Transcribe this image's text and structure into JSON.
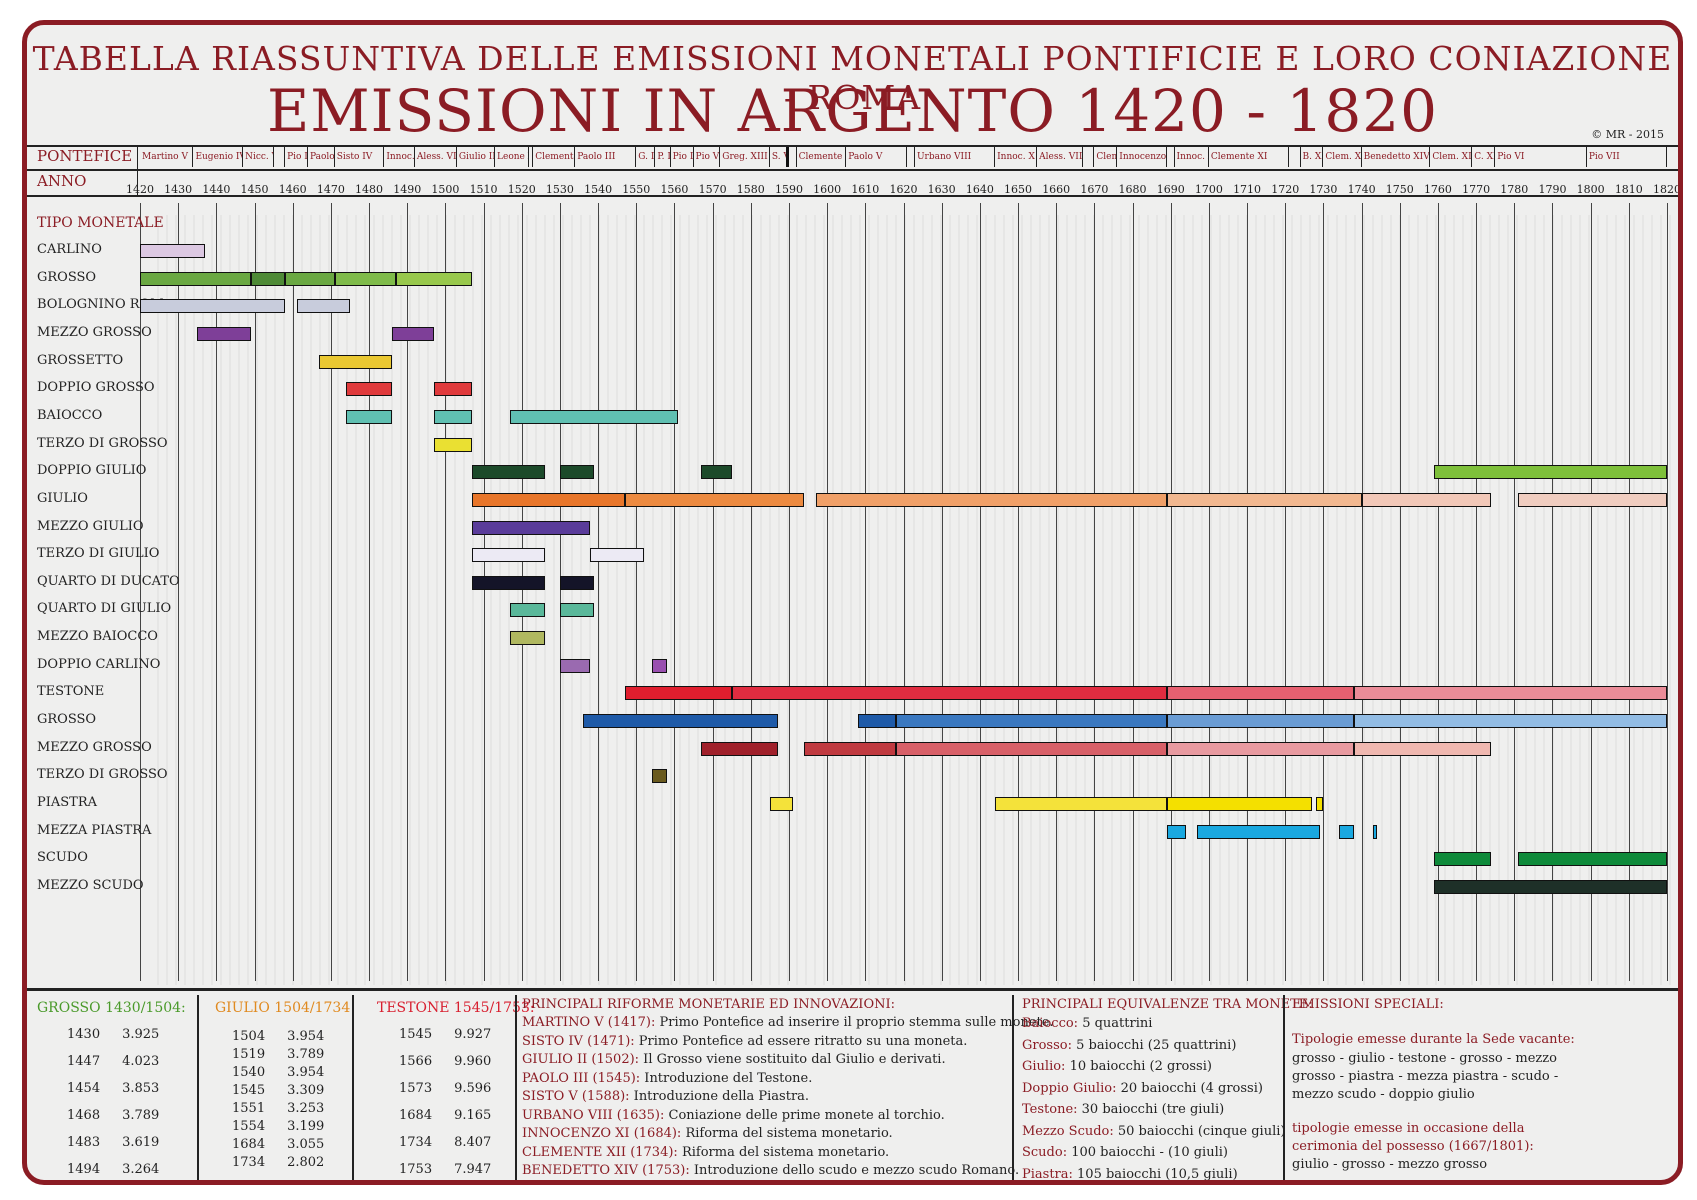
{
  "title_line1": "TABELLA RIASSUNTIVA DELLE EMISSIONI MONETALI PONTIFICIE E LORO CONIAZIONE - ROMA",
  "title_line2": "EMISSIONI IN ARGENTO 1420 - 1820",
  "copyright": "© MR - 2015",
  "header_labels": {
    "pontefice": "PONTEFICE",
    "anno": "ANNO",
    "tipo": "TIPO MONETALE"
  },
  "colors": {
    "frame": "#8b1c24",
    "label_red": "#8b1c24"
  },
  "popes": [
    {
      "name": "Martino V",
      "start": 1420,
      "end": 1434
    },
    {
      "name": "Eugenio IV",
      "start": 1434,
      "end": 1447
    },
    {
      "name": "Nicc. V",
      "start": 1447,
      "end": 1455
    },
    {
      "name": "",
      "start": 1455,
      "end": 1458
    },
    {
      "name": "Pio II",
      "start": 1458,
      "end": 1464
    },
    {
      "name": "Paolo II",
      "start": 1464,
      "end": 1471
    },
    {
      "name": "Sisto IV",
      "start": 1471,
      "end": 1484
    },
    {
      "name": "Innoc. VIII",
      "start": 1484,
      "end": 1492
    },
    {
      "name": "Aless. VI",
      "start": 1492,
      "end": 1503
    },
    {
      "name": "Giulio II",
      "start": 1503,
      "end": 1513
    },
    {
      "name": "Leone X",
      "start": 1513,
      "end": 1522
    },
    {
      "name": "",
      "start": 1522,
      "end": 1523
    },
    {
      "name": "Clemente VII",
      "start": 1523,
      "end": 1534
    },
    {
      "name": "Paolo III",
      "start": 1534,
      "end": 1550
    },
    {
      "name": "G. III",
      "start": 1550,
      "end": 1555
    },
    {
      "name": "P. IV",
      "start": 1555,
      "end": 1559
    },
    {
      "name": "Pio IV",
      "start": 1559,
      "end": 1565
    },
    {
      "name": "Pio V",
      "start": 1565,
      "end": 1572
    },
    {
      "name": "Greg. XIII",
      "start": 1572,
      "end": 1585
    },
    {
      "name": "S. V",
      "start": 1585,
      "end": 1590
    },
    {
      "name": "",
      "start": 1590,
      "end": 1592
    },
    {
      "name": "Clemente VIII",
      "start": 1592,
      "end": 1605
    },
    {
      "name": "Paolo V",
      "start": 1605,
      "end": 1621
    },
    {
      "name": "",
      "start": 1621,
      "end": 1623
    },
    {
      "name": "Urbano VIII",
      "start": 1623,
      "end": 1644
    },
    {
      "name": "Innoc. X",
      "start": 1644,
      "end": 1655
    },
    {
      "name": "Aless. VII",
      "start": 1655,
      "end": 1667
    },
    {
      "name": "",
      "start": 1667,
      "end": 1670
    },
    {
      "name": "Clem. X",
      "start": 1670,
      "end": 1676
    },
    {
      "name": "Innocenzo XI",
      "start": 1676,
      "end": 1689
    },
    {
      "name": "",
      "start": 1689,
      "end": 1691
    },
    {
      "name": "Innoc. XII",
      "start": 1691,
      "end": 1700
    },
    {
      "name": "Clemente XI",
      "start": 1700,
      "end": 1721
    },
    {
      "name": "",
      "start": 1721,
      "end": 1724
    },
    {
      "name": "B. XIII",
      "start": 1724,
      "end": 1730
    },
    {
      "name": "Clem. XII",
      "start": 1730,
      "end": 1740
    },
    {
      "name": "Benedetto XIV",
      "start": 1740,
      "end": 1758
    },
    {
      "name": "Clem. XIII",
      "start": 1758,
      "end": 1769
    },
    {
      "name": "C. XIV",
      "start": 1769,
      "end": 1775
    },
    {
      "name": "Pio VI",
      "start": 1775,
      "end": 1799
    },
    {
      "name": "Pio VII",
      "start": 1799,
      "end": 1820
    }
  ],
  "chart_data": {
    "type": "bar",
    "xlim": [
      1420,
      1820
    ],
    "x_ticks": [
      "1420",
      "1430",
      "1440",
      "1450",
      "1460",
      "1470",
      "1480",
      "1490",
      "1500",
      "1510",
      "1520",
      "1530",
      "1540",
      "1550",
      "1560",
      "1570",
      "1580",
      "1590",
      "1600",
      "1610",
      "1620",
      "1630",
      "1640",
      "1650",
      "1660",
      "1670",
      "1680",
      "1690",
      "1700",
      "1710",
      "1720",
      "1730",
      "1740",
      "1750",
      "1760",
      "1770",
      "1780",
      "1790",
      "1800",
      "1810",
      "1820"
    ],
    "grid": true,
    "rows": [
      {
        "label": "CARLINO",
        "bars": [
          {
            "start": 1420,
            "end": 1437,
            "color": "#dcc8e2"
          }
        ]
      },
      {
        "label": "GROSSO",
        "bars": [
          {
            "start": 1420,
            "end": 1449,
            "color": "#6aa842"
          },
          {
            "start": 1449,
            "end": 1458,
            "color": "#4e8a36"
          },
          {
            "start": 1458,
            "end": 1471,
            "color": "#6aa842"
          },
          {
            "start": 1471,
            "end": 1487,
            "color": "#7fbb4a"
          },
          {
            "start": 1487,
            "end": 1507,
            "color": "#98c84c"
          }
        ]
      },
      {
        "label": "BOLOGNINO ROM.",
        "bars": [
          {
            "start": 1420,
            "end": 1458,
            "color": "#c8ccdc"
          },
          {
            "start": 1461,
            "end": 1475,
            "color": "#c8ccdc"
          }
        ]
      },
      {
        "label": "MEZZO GROSSO",
        "bars": [
          {
            "start": 1435,
            "end": 1449,
            "color": "#7e3f98"
          },
          {
            "start": 1486,
            "end": 1497,
            "color": "#7e3f98"
          }
        ]
      },
      {
        "label": "GROSSETTO",
        "bars": [
          {
            "start": 1467,
            "end": 1486,
            "color": "#eac832"
          }
        ]
      },
      {
        "label": "DOPPIO GROSSO",
        "bars": [
          {
            "start": 1474,
            "end": 1486,
            "color": "#e03a3c"
          },
          {
            "start": 1497,
            "end": 1507,
            "color": "#e03a3c"
          }
        ]
      },
      {
        "label": "BAIOCCO",
        "bars": [
          {
            "start": 1474,
            "end": 1486,
            "color": "#60c0b2"
          },
          {
            "start": 1497,
            "end": 1507,
            "color": "#60c0b2"
          },
          {
            "start": 1517,
            "end": 1561,
            "color": "#60c0b2"
          }
        ]
      },
      {
        "label": "TERZO DI GROSSO",
        "bars": [
          {
            "start": 1497,
            "end": 1507,
            "color": "#eae032"
          }
        ]
      },
      {
        "label": "DOPPIO GIULIO",
        "bars": [
          {
            "start": 1507,
            "end": 1526,
            "color": "#1c4a2a"
          },
          {
            "start": 1530,
            "end": 1539,
            "color": "#1c4a2a"
          },
          {
            "start": 1567,
            "end": 1575,
            "color": "#1c4a2a"
          },
          {
            "start": 1759,
            "end": 1820,
            "color": "#7ec03a"
          }
        ]
      },
      {
        "label": "GIULIO",
        "bars": [
          {
            "start": 1507,
            "end": 1547,
            "color": "#e8762a"
          },
          {
            "start": 1547,
            "end": 1594,
            "color": "#ec8a40"
          },
          {
            "start": 1597,
            "end": 1689,
            "color": "#f0a068"
          },
          {
            "start": 1689,
            "end": 1740,
            "color": "#f2b890"
          },
          {
            "start": 1740,
            "end": 1774,
            "color": "#f2c8b8"
          },
          {
            "start": 1781,
            "end": 1820,
            "color": "#f0cdc0"
          }
        ]
      },
      {
        "label": "MEZZO GIULIO",
        "bars": [
          {
            "start": 1507,
            "end": 1538,
            "color": "#5a3c9a"
          }
        ]
      },
      {
        "label": "TERZO DI GIULIO",
        "bars": [
          {
            "start": 1507,
            "end": 1526,
            "color": "#eceaf4"
          },
          {
            "start": 1538,
            "end": 1552,
            "color": "#eceaf4"
          }
        ]
      },
      {
        "label": "QUARTO DI DUCATO",
        "bars": [
          {
            "start": 1507,
            "end": 1526,
            "color": "#141428"
          },
          {
            "start": 1530,
            "end": 1539,
            "color": "#141428"
          }
        ]
      },
      {
        "label": "QUARTO DI GIULIO",
        "bars": [
          {
            "start": 1517,
            "end": 1526,
            "color": "#5ab89a"
          },
          {
            "start": 1530,
            "end": 1539,
            "color": "#5ab89a"
          }
        ]
      },
      {
        "label": "MEZZO BAIOCCO",
        "bars": [
          {
            "start": 1517,
            "end": 1526,
            "color": "#b0b860"
          }
        ]
      },
      {
        "label": "DOPPIO CARLINO",
        "bars": [
          {
            "start": 1530,
            "end": 1538,
            "color": "#9a6ab0"
          },
          {
            "start": 1554,
            "end": 1558,
            "color": "#9a50b0"
          }
        ]
      },
      {
        "label": "TESTONE",
        "bars": [
          {
            "start": 1547,
            "end": 1575,
            "color": "#e01e2e"
          },
          {
            "start": 1575,
            "end": 1689,
            "color": "#e02c40"
          },
          {
            "start": 1689,
            "end": 1738,
            "color": "#e66070"
          },
          {
            "start": 1738,
            "end": 1820,
            "color": "#ea8c98"
          }
        ]
      },
      {
        "label": "GROSSO",
        "bars": [
          {
            "start": 1536,
            "end": 1587,
            "color": "#1e5aa8"
          },
          {
            "start": 1608,
            "end": 1618,
            "color": "#1e5aa8"
          },
          {
            "start": 1618,
            "end": 1689,
            "color": "#3a78c0"
          },
          {
            "start": 1689,
            "end": 1738,
            "color": "#6a9cd4"
          },
          {
            "start": 1738,
            "end": 1820,
            "color": "#92bce4"
          }
        ]
      },
      {
        "label": "MEZZO GROSSO",
        "bars": [
          {
            "start": 1567,
            "end": 1587,
            "color": "#a0202a"
          },
          {
            "start": 1594,
            "end": 1618,
            "color": "#c03a40"
          },
          {
            "start": 1618,
            "end": 1689,
            "color": "#d86068"
          },
          {
            "start": 1689,
            "end": 1738,
            "color": "#e89aa0"
          },
          {
            "start": 1738,
            "end": 1774,
            "color": "#f0b8b0"
          }
        ]
      },
      {
        "label": "TERZO DI GROSSO",
        "bars": [
          {
            "start": 1554,
            "end": 1558,
            "color": "#6a5a1e"
          }
        ]
      },
      {
        "label": "PIASTRA",
        "bars": [
          {
            "start": 1585,
            "end": 1591,
            "color": "#f4e23a"
          },
          {
            "start": 1644,
            "end": 1689,
            "color": "#f4e23a"
          },
          {
            "start": 1689,
            "end": 1727,
            "color": "#f4e000"
          },
          {
            "start": 1728,
            "end": 1730,
            "color": "#f4e000"
          }
        ]
      },
      {
        "label": "MEZZA PIASTRA",
        "bars": [
          {
            "start": 1689,
            "end": 1694,
            "color": "#1aa8e0"
          },
          {
            "start": 1697,
            "end": 1729,
            "color": "#1aa8e0"
          },
          {
            "start": 1734,
            "end": 1738,
            "color": "#1aa8e0"
          },
          {
            "start": 1743,
            "end": 1744,
            "color": "#1aa8e0"
          }
        ]
      },
      {
        "label": "SCUDO",
        "bars": [
          {
            "start": 1759,
            "end": 1774,
            "color": "#0e8a3a"
          },
          {
            "start": 1781,
            "end": 1820,
            "color": "#0e8a3a"
          }
        ]
      },
      {
        "label": "MEZZO SCUDO",
        "bars": [
          {
            "start": 1759,
            "end": 1820,
            "color": "#1e3028"
          }
        ]
      }
    ]
  },
  "bottom": {
    "grosso": {
      "title": "GROSSO 1430/1504:",
      "color": "#4a9a2a",
      "rows": [
        [
          "1430",
          "3.925"
        ],
        [
          "1447",
          "4.023"
        ],
        [
          "1454",
          "3.853"
        ],
        [
          "1468",
          "3.789"
        ],
        [
          "1483",
          "3.619"
        ],
        [
          "1494",
          "3.264"
        ]
      ]
    },
    "giulio": {
      "title": "GIULIO 1504/1734",
      "color": "#e08a20",
      "rows": [
        [
          "1504",
          "3.954"
        ],
        [
          "1519",
          "3.789"
        ],
        [
          "1540",
          "3.954"
        ],
        [
          "1545",
          "3.309"
        ],
        [
          "1551",
          "3.253"
        ],
        [
          "1554",
          "3.199"
        ],
        [
          "1684",
          "3.055"
        ],
        [
          "1734",
          "2.802"
        ]
      ]
    },
    "testone": {
      "title": "TESTONE 1545/1753:",
      "color": "#d82030",
      "rows": [
        [
          "1545",
          "9.927"
        ],
        [
          "1566",
          "9.960"
        ],
        [
          "1573",
          "9.596"
        ],
        [
          "1684",
          "9.165"
        ],
        [
          "1734",
          "8.407"
        ],
        [
          "1753",
          "7.947"
        ]
      ]
    },
    "riforme": {
      "title": "PRINCIPALI RIFORME MONETARIE ED INNOVAZIONI:",
      "items": [
        {
          "k": "MARTINO V (1417):",
          "v": "Primo Pontefice ad inserire il proprio stemma sulle monete."
        },
        {
          "k": "SISTO IV (1471):",
          "v": "Primo Pontefice ad essere ritratto su una moneta."
        },
        {
          "k": "GIULIO II (1502):",
          "v": "Il Grosso viene sostituito dal Giulio e derivati."
        },
        {
          "k": "PAOLO III (1545):",
          "v": "Introduzione del Testone."
        },
        {
          "k": "SISTO V (1588):",
          "v": "Introduzione della Piastra."
        },
        {
          "k": "URBANO VIII (1635):",
          "v": "Coniazione delle prime monete al torchio."
        },
        {
          "k": "INNOCENZO XI (1684):",
          "v": "Riforma del sistema monetario."
        },
        {
          "k": "CLEMENTE XII (1734):",
          "v": "Riforma del sistema monetario."
        },
        {
          "k": "BENEDETTO XIV (1753):",
          "v": "Introduzione dello scudo e mezzo scudo Romano."
        }
      ]
    },
    "equivalenze": {
      "title": "PRINCIPALI EQUIVALENZE TRA MONETE:",
      "items": [
        {
          "k": "Baiocco:",
          "v": "5 quattrini"
        },
        {
          "k": "Grosso:",
          "v": "5 baiocchi (25 quattrini)"
        },
        {
          "k": "Giulio:",
          "v": "10 baiocchi  (2 grossi)"
        },
        {
          "k": "Doppio Giulio:",
          "v": "20 baiocchi (4 grossi)"
        },
        {
          "k": "Testone:",
          "v": "30 baiocchi (tre giuli)"
        },
        {
          "k": "Mezzo Scudo:",
          "v": "50 baiocchi (cinque giuli)"
        },
        {
          "k": "Scudo:",
          "v": "100 baiocchi - (10 giuli)"
        },
        {
          "k": "Piastra:",
          "v": "105 baiocchi (10,5 giuli)"
        }
      ]
    },
    "speciali": {
      "title": "EMISSIONI SPECIALI:",
      "sub1": "Tipologie emesse durante la Sede vacante:",
      "text1": [
        "grosso - giulio - testone - grosso - mezzo",
        "grosso - piastra - mezza piastra - scudo -",
        "mezzo scudo - doppio giulio"
      ],
      "sub2": [
        "tipologie emesse in occasione della",
        "cerimonia del possesso (1667/1801):"
      ],
      "text2": "giulio - grosso - mezzo grosso"
    }
  }
}
